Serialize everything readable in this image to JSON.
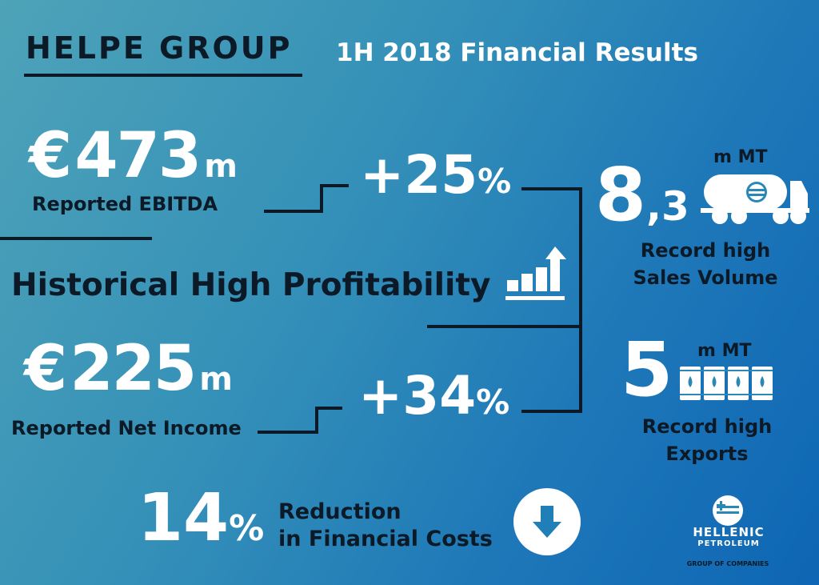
{
  "header": {
    "group_title": "HELPE GROUP",
    "subtitle": "1H 2018 Financial Results"
  },
  "ebitda": {
    "currency": "€",
    "value": "473",
    "unit": "m",
    "label": "Reported EBITDA",
    "change_value": "+25",
    "change_unit": "%"
  },
  "headline": {
    "text": "Historical High Profitability"
  },
  "net_income": {
    "currency": "€",
    "value": "225",
    "unit": "m",
    "label": "Reported Net Income",
    "change_value": "+34",
    "change_unit": "%"
  },
  "financial_costs": {
    "value": "14",
    "unit": "%",
    "label_line1": "Reduction",
    "label_line2": "in Financial Costs"
  },
  "sales_volume": {
    "value_int": "8",
    "value_dec": ",3",
    "unit": "m MT",
    "label_line1": "Record high",
    "label_line2": "Sales Volume"
  },
  "exports": {
    "value": "5",
    "unit": "m MT",
    "label_line1": "Record high",
    "label_line2": "Exports"
  },
  "logo": {
    "name": "HELLENIC",
    "name2": "PETROLEUM",
    "tagline": "GROUP OF COMPANIES"
  },
  "colors": {
    "background_start": "#4ea3b8",
    "background_end": "#0e66b4",
    "dark_text": "#0b1a26",
    "light_text": "#ffffff"
  },
  "icons": [
    "bar-chart-up-icon",
    "tanker-truck-icon",
    "oil-barrels-icon",
    "down-arrow-circle-icon",
    "hellenic-petroleum-logo-icon"
  ]
}
